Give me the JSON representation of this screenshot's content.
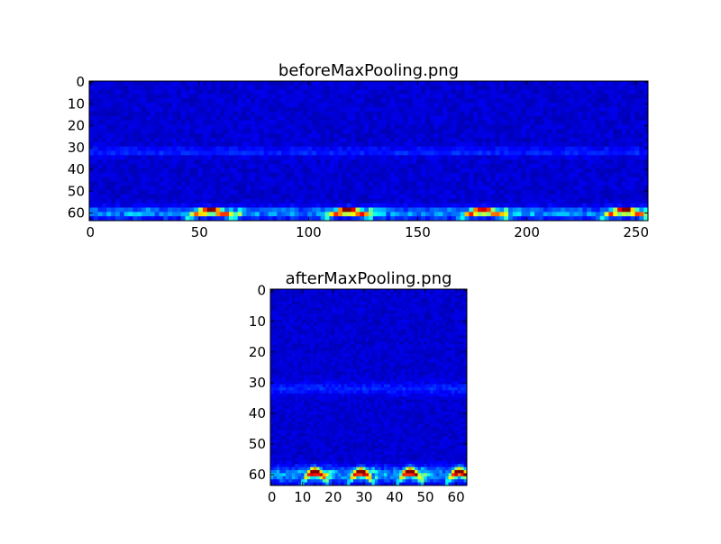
{
  "chart_data": [
    {
      "type": "heatmap",
      "title": "beforeMaxPooling.png",
      "colormap": "jet",
      "xlim": [
        -0.5,
        255.5
      ],
      "ylim": [
        63.5,
        -0.5
      ],
      "xticks": [
        0,
        50,
        100,
        150,
        200,
        250
      ],
      "yticks": [
        0,
        10,
        20,
        30,
        40,
        50,
        60
      ],
      "shape": [
        64,
        256
      ],
      "hotspots": [
        {
          "x": 55,
          "y": 60,
          "value": 1.0
        },
        {
          "x": 118,
          "y": 60,
          "value": 1.0
        },
        {
          "x": 180,
          "y": 60,
          "value": 0.95
        },
        {
          "x": 245,
          "y": 60,
          "value": 0.95
        }
      ],
      "background_value": 0.05,
      "band_rows": [
        57,
        63
      ]
    },
    {
      "type": "heatmap",
      "title": "afterMaxPooling.png",
      "colormap": "jet",
      "xlim": [
        -0.5,
        63.5
      ],
      "ylim": [
        63.5,
        -0.5
      ],
      "xticks": [
        0,
        10,
        20,
        30,
        40,
        50,
        60
      ],
      "yticks": [
        0,
        10,
        20,
        30,
        40,
        50,
        60
      ],
      "shape": [
        64,
        64
      ],
      "hotspots": [
        {
          "x": 14,
          "y": 60,
          "value": 1.0
        },
        {
          "x": 29,
          "y": 60,
          "value": 1.0
        },
        {
          "x": 45,
          "y": 60,
          "value": 0.95
        },
        {
          "x": 61,
          "y": 60,
          "value": 0.95
        }
      ],
      "background_value": 0.05,
      "band_rows": [
        57,
        63
      ]
    }
  ]
}
